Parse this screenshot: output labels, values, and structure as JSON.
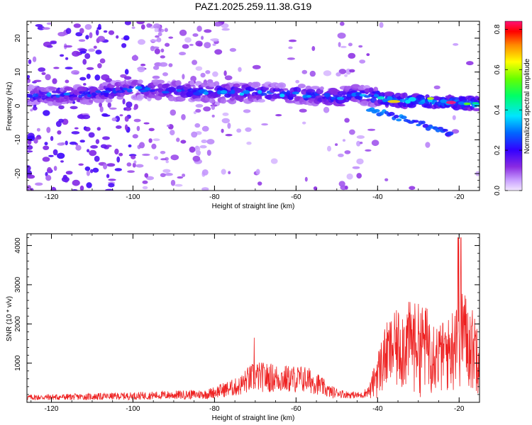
{
  "title": "PAZ1.2025.259.11.38.G19",
  "chart_data": [
    {
      "type": "heatmap",
      "xlabel": "Height of straight line (km)",
      "ylabel": "Frequency (Hz)",
      "xlim": [
        -126,
        -15
      ],
      "ylim": [
        -25,
        25
      ],
      "xticks": [
        -120,
        -100,
        -80,
        -60,
        -40,
        -20
      ],
      "yticks": [
        -20,
        -10,
        0,
        10,
        20
      ],
      "colorbar": {
        "label": "Normalized spectral amplitude",
        "range": [
          0,
          0.84
        ],
        "ticks": [
          0.0,
          0.2,
          0.4,
          0.6,
          0.8
        ],
        "colormap": "rainbow (violet to red)"
      },
      "ridge": {
        "description_points_x": [
          -126,
          -110,
          -100,
          -90,
          -80,
          -70,
          -60,
          -50,
          -45,
          -40,
          -35,
          -30,
          -25,
          -20,
          -15
        ],
        "description_points_y": [
          3,
          3.5,
          5,
          4.5,
          4,
          4,
          3.5,
          2.5,
          3.5,
          2.5,
          1.5,
          1.5,
          1,
          1,
          0.5
        ],
        "peak_amplitude": 0.84,
        "peak_x": -22
      }
    },
    {
      "type": "line",
      "xlabel": "Height of straight line (km)",
      "ylabel": "SNR (10 * v/v)",
      "xlim": [
        -126,
        -15
      ],
      "ylim": [
        0,
        4300
      ],
      "xticks": [
        -120,
        -100,
        -80,
        -60,
        -40,
        -20
      ],
      "yticks": [
        1000,
        2000,
        3000,
        4000
      ],
      "color": "#ee2222",
      "envelope_x": [
        -126,
        -110,
        -100,
        -90,
        -82,
        -78,
        -74,
        -72,
        -70,
        -66,
        -62,
        -58,
        -55,
        -52,
        -48,
        -44,
        -42,
        -40,
        -38,
        -35,
        -32,
        -29,
        -27,
        -25,
        -22,
        -20,
        -18,
        -16,
        -15
      ],
      "envelope_y": [
        200,
        230,
        260,
        300,
        330,
        500,
        650,
        900,
        1050,
        1000,
        950,
        950,
        800,
        450,
        300,
        260,
        450,
        1300,
        2000,
        2400,
        2600,
        2500,
        2400,
        2000,
        2200,
        3600,
        2600,
        2300,
        2600
      ]
    }
  ]
}
